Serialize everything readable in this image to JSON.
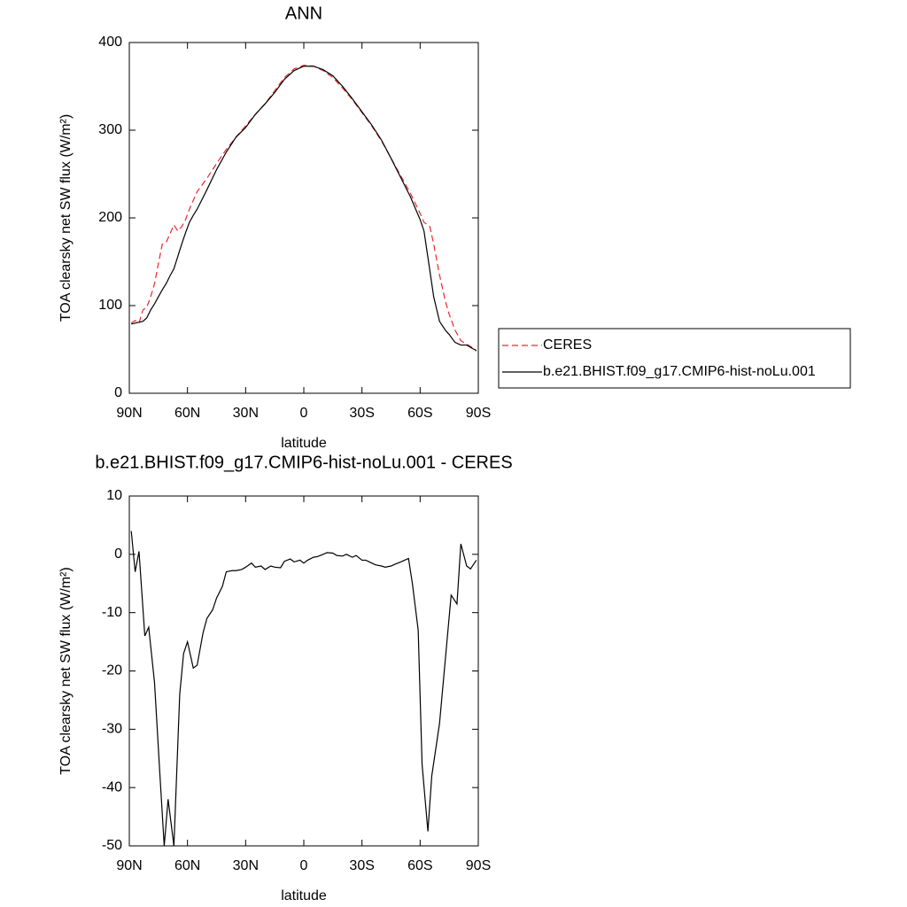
{
  "chart_data": [
    {
      "type": "line",
      "title": "ANN",
      "xlabel": "latitude",
      "ylabel": "TOA clearsky net SW flux (W/m²)",
      "x": [
        89,
        87,
        85,
        83,
        81,
        79,
        77,
        75,
        73,
        71,
        69,
        67,
        65,
        63,
        61,
        59,
        57,
        55,
        50,
        45,
        40,
        35,
        30,
        25,
        20,
        15,
        10,
        5,
        0,
        -5,
        -10,
        -15,
        -20,
        -25,
        -30,
        -35,
        -40,
        -45,
        -50,
        -55,
        -60,
        -62,
        -65,
        -67,
        -70,
        -73,
        -75,
        -78,
        -81,
        -84,
        -87,
        -89
      ],
      "series": [
        {
          "name": "CERES",
          "color": "#e8282d",
          "line_style": "dashed",
          "values": [
            80,
            83,
            80,
            95,
            98,
            110,
            125,
            148,
            170,
            172,
            182,
            192,
            185,
            190,
            198,
            210,
            220,
            230,
            245,
            262,
            278,
            292,
            305,
            318,
            330,
            345,
            360,
            370,
            374,
            373,
            368,
            360,
            348,
            335,
            320,
            305,
            288,
            268,
            248,
            228,
            205,
            195,
            190,
            170,
            135,
            105,
            90,
            72,
            60,
            56,
            52,
            48
          ]
        },
        {
          "name": "b.e21.BHIST.f09_g17.CMIP6-hist-noLu.001",
          "color": "#000000",
          "line_style": "solid",
          "values": [
            79,
            80,
            81,
            82,
            86,
            95,
            102,
            110,
            118,
            125,
            134,
            142,
            156,
            170,
            183,
            195,
            203,
            210,
            232,
            255,
            275,
            292,
            303,
            318,
            330,
            343,
            358,
            368,
            373,
            373,
            369,
            362,
            350,
            336,
            321,
            306,
            289,
            268,
            246,
            224,
            198,
            185,
            140,
            110,
            82,
            72,
            67,
            58,
            55,
            55,
            51,
            49
          ]
        }
      ],
      "xlim": [
        90,
        -90
      ],
      "xticks": [
        {
          "value": 90,
          "label": "90N"
        },
        {
          "value": 60,
          "label": "60N"
        },
        {
          "value": 30,
          "label": "30N"
        },
        0,
        {
          "value": -30,
          "label": "30S"
        },
        {
          "value": -60,
          "label": "60S"
        },
        {
          "value": -90,
          "label": "90S"
        }
      ],
      "ylim": [
        0,
        400
      ],
      "yticks": [
        0,
        100,
        200,
        300,
        400
      ],
      "legend": "right"
    },
    {
      "type": "line",
      "title": "b.e21.BHIST.f09_g17.CMIP6-hist-noLu.001 - CERES",
      "xlabel": "latitude",
      "ylabel": "TOA clearsky net SW flux (W/m²)",
      "x": [
        89,
        87,
        85,
        82,
        80,
        77,
        74,
        72,
        70,
        67,
        64,
        62,
        60,
        57,
        55,
        52,
        50,
        47,
        45,
        42,
        40,
        37,
        35,
        32,
        30,
        27,
        25,
        22,
        20,
        17,
        15,
        12,
        10,
        7,
        5,
        2,
        0,
        -2,
        -5,
        -7,
        -10,
        -12,
        -15,
        -17,
        -20,
        -22,
        -25,
        -27,
        -30,
        -32,
        -35,
        -37,
        -40,
        -42,
        -45,
        -47,
        -50,
        -52,
        -54,
        -56,
        -59,
        -61,
        -64,
        -66,
        -70,
        -73,
        -76,
        -79,
        -81,
        -84,
        -86,
        -89
      ],
      "values": [
        4,
        -3,
        0.5,
        -14,
        -12.5,
        -22,
        -39,
        -50,
        -42,
        -50,
        -24,
        -17,
        -15,
        -19.5,
        -19,
        -13.5,
        -11,
        -9.5,
        -7.5,
        -5.5,
        -3,
        -2.8,
        -2.8,
        -2.6,
        -2.2,
        -1.5,
        -2.2,
        -2,
        -2.6,
        -2,
        -2.2,
        -2.3,
        -1.2,
        -0.8,
        -1.3,
        -1,
        -1.5,
        -1,
        -0.5,
        -0.4,
        0,
        0.3,
        0.2,
        -0.2,
        -0.3,
        0,
        -0.5,
        -0.2,
        -1,
        -1,
        -1.5,
        -1.8,
        -2,
        -2.2,
        -2,
        -1.7,
        -1.3,
        -1,
        -0.7,
        -5,
        -13,
        -36,
        -47.5,
        -38,
        -29,
        -18,
        -7,
        -8.5,
        1.8,
        -2,
        -2.5,
        -1
      ],
      "color": "#000000",
      "xlim": [
        90,
        -90
      ],
      "xticks": [
        {
          "value": 90,
          "label": "90N"
        },
        {
          "value": 60,
          "label": "60N"
        },
        {
          "value": 30,
          "label": "30N"
        },
        0,
        {
          "value": -30,
          "label": "30S"
        },
        {
          "value": -60,
          "label": "60S"
        },
        {
          "value": -90,
          "label": "90S"
        }
      ],
      "ylim": [
        -50,
        10
      ],
      "yticks": [
        10,
        0,
        -10,
        -20,
        -30,
        -40,
        -50
      ]
    }
  ]
}
